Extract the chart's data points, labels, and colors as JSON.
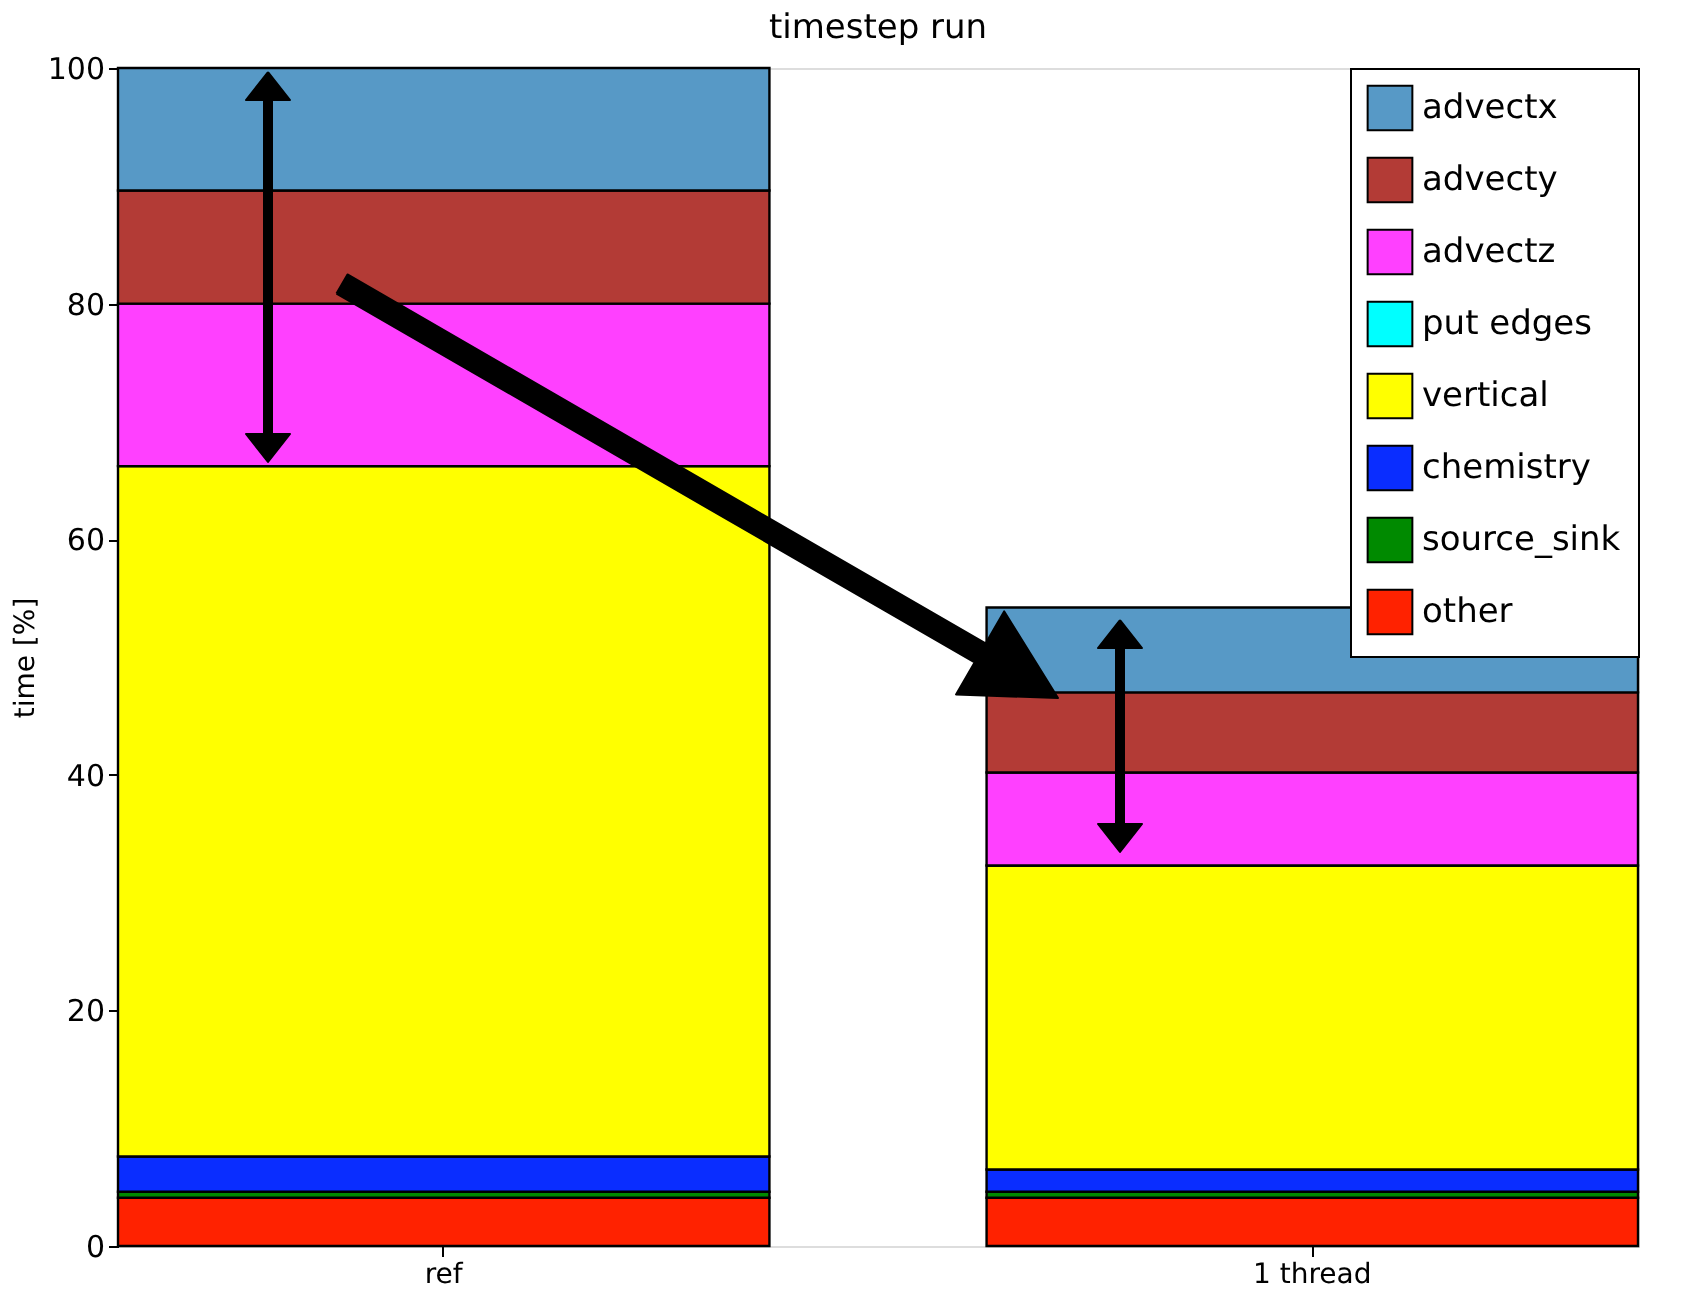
{
  "chart_data": {
    "type": "bar",
    "title": "timestep run",
    "ylabel": "time [%]",
    "categories": [
      "ref",
      "1 thread"
    ],
    "stacked": true,
    "ylim": [
      0,
      100
    ],
    "yticks": [
      0,
      20,
      40,
      60,
      80,
      100
    ],
    "grid": false,
    "legend": "top right",
    "series": [
      {
        "name": "other",
        "color": "#ff2200",
        "values": [
          4.1,
          4.1
        ]
      },
      {
        "name": "source_sink",
        "color": "#008a00",
        "values": [
          0.5,
          0.5
        ]
      },
      {
        "name": "chemistry",
        "color": "#0a2dff",
        "values": [
          3.0,
          1.9
        ]
      },
      {
        "name": "vertical",
        "color": "#ffff00",
        "values": [
          58.6,
          25.8
        ]
      },
      {
        "name": "put edges",
        "color": "#00ffff",
        "values": [
          0,
          0
        ]
      },
      {
        "name": "advectz",
        "color": "#ff40ff",
        "values": [
          13.8,
          7.9
        ]
      },
      {
        "name": "advecty",
        "color": "#b33b36",
        "values": [
          9.6,
          6.8
        ]
      },
      {
        "name": "advectx",
        "color": "#5799c6",
        "values": [
          10.4,
          7.2
        ]
      }
    ]
  }
}
